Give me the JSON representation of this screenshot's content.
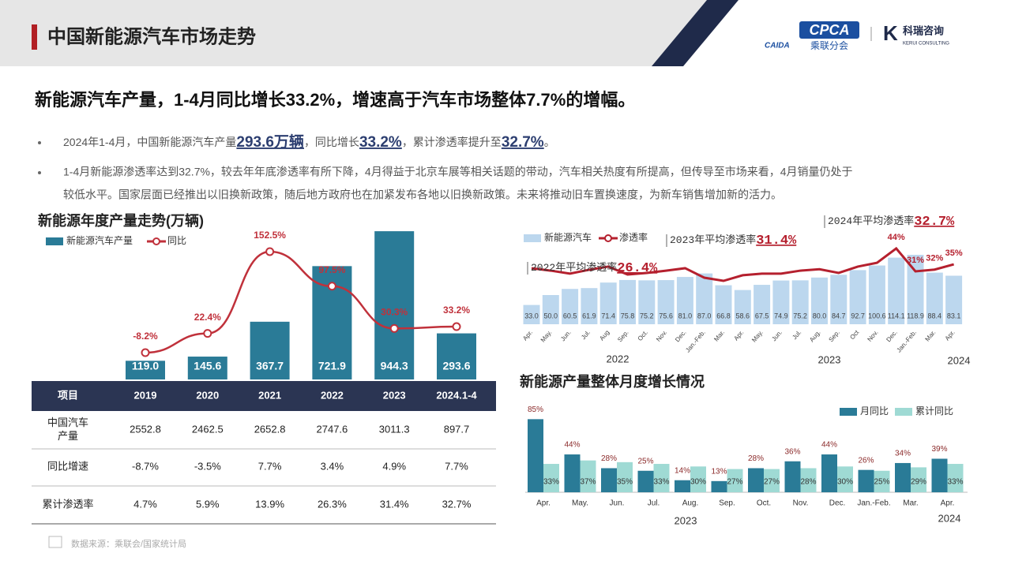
{
  "header": {
    "title": "中国新能源汽车市场走势",
    "logos": [
      "CAIDA",
      "CPCA",
      "乘联分会",
      "科瑞咨询",
      "KERUI CONSULTING"
    ]
  },
  "headline": "新能源汽车产量，1-4月同比增长33.2%，增速高于汽车市场整体7.7%的增幅。",
  "bullets": [
    [
      "2024年1-4月，中国新能源汽车产量",
      "293.6万辆",
      "，同比增长",
      "33.2%",
      "，累计渗透率提升至",
      "32.7%",
      "。"
    ],
    [
      "1-4月新能源渗透率达到32.7%，较去年年底渗透率有所下降，4月得益于北京车展等相关话题的带动，汽车相关热度有所提高，但传导至市场来看，4月销量仍处于",
      "较低水平。国家层面已经推出以旧换新政策，随后地方政府也在加紧发布各地以旧换新政策。未来将推动旧车置换速度，为新车销售增加新的活力。"
    ]
  ],
  "chart_data": [
    {
      "type": "combo",
      "title": "新能源年度产量走势(万辆)",
      "categories": [
        "2019",
        "2020",
        "2021",
        "2022",
        "2023",
        "2024.1-4"
      ],
      "series": [
        {
          "name": "新能源汽车产量",
          "type": "bar",
          "color": "#2a7b97",
          "values": [
            119.0,
            145.6,
            367.7,
            721.9,
            944.3,
            293.6
          ],
          "value_labels": [
            "119.0",
            "145.6",
            "367.7",
            "721.9",
            "944.3",
            "293.6"
          ]
        },
        {
          "name": "同比",
          "type": "line",
          "color": "#c0313b",
          "values": [
            -8.2,
            22.4,
            152.5,
            97.5,
            30.3,
            33.2
          ],
          "value_labels": [
            "-8.2%",
            "22.4%",
            "152.5%",
            "97.5%",
            "30.3%",
            "33.2%"
          ]
        }
      ]
    },
    {
      "type": "combo",
      "categories": [
        "Apr.",
        "May.",
        "Jun.",
        "Jul.",
        "Aug",
        "Sep.",
        "Oct.",
        "Nov.",
        "Dec.",
        "Jan.-Feb.",
        "Mar.",
        "Apr.",
        "May.",
        "Jun.",
        "Jul.",
        "Aug.",
        "Sep.",
        "Oct",
        "Nov.",
        "Dec.",
        "Jan.-Feb.",
        "Mar.",
        "Apr."
      ],
      "year_labels": [
        "2022",
        "2023",
        "2024"
      ],
      "series": [
        {
          "name": "新能源汽车",
          "type": "bar",
          "color": "#bcd7ee",
          "values": [
            33.0,
            50.0,
            60.5,
            61.9,
            71.4,
            75.8,
            75.2,
            75.6,
            81.0,
            87.0,
            66.8,
            58.6,
            67.5,
            74.9,
            75.2,
            80.0,
            84.7,
            92.7,
            100.6,
            114.1,
            118.9,
            88.4,
            83.1
          ],
          "value_labels": [
            "33.0",
            "50.0",
            "60.5",
            "61.9",
            "71.4",
            "75.8",
            "75.2",
            "75.6",
            "81.0",
            "87.0",
            "66.8",
            "58.6",
            "67.5",
            "74.9",
            "75.2",
            "80.0",
            "84.7",
            "92.7",
            "100.6",
            "114.1",
            "118.9",
            "88.4",
            "83.1"
          ]
        },
        {
          "name": "渗透率",
          "type": "line",
          "color": "#b5202e",
          "values": [
            32.8,
            31.4,
            29.7,
            31.9,
            33.7,
            29.2,
            30.1,
            31.4,
            32.8,
            27.4,
            25.6,
            28.8,
            29.7,
            29.7,
            31.4,
            32.2,
            30.1,
            33.7,
            35.9,
            44,
            31,
            32,
            35
          ],
          "value_labels": [
            null,
            null,
            null,
            null,
            null,
            null,
            null,
            null,
            null,
            null,
            null,
            null,
            null,
            null,
            null,
            null,
            null,
            null,
            null,
            "44%",
            "31%",
            "32%",
            "35%"
          ]
        }
      ],
      "annotations": [
        [
          "2022年平均渗透率",
          "26.4%"
        ],
        [
          "2023年平均渗透率",
          "31.4%"
        ],
        [
          "2024年平均渗透率",
          "32.7%"
        ]
      ]
    },
    {
      "type": "bar",
      "title": "新能源产量整体月度增长情况",
      "categories": [
        "Apr.",
        "May.",
        "Jun.",
        "Jul.",
        "Aug.",
        "Sep.",
        "Oct.",
        "Nov.",
        "Dec.",
        "Jan.-Feb.",
        "Mar.",
        "Apr."
      ],
      "year_labels": [
        "2023",
        "2024"
      ],
      "series": [
        {
          "name": "月同比",
          "color": "#2a7b97",
          "values": [
            85,
            44,
            28,
            25,
            14,
            13,
            28,
            36,
            44,
            26,
            34,
            39
          ],
          "value_labels": [
            "85%",
            "44%",
            "28%",
            "25%",
            "14%",
            "13%",
            "28%",
            "36%",
            "44%",
            "26%",
            "34%",
            "39%"
          ]
        },
        {
          "name": "累计同比",
          "color": "#9fdad4",
          "values": [
            33,
            37,
            35,
            33,
            30,
            27,
            27,
            28,
            30,
            25,
            29,
            33
          ],
          "value_labels": [
            "33%",
            "37%",
            "35%",
            "33%",
            "30%",
            "27%",
            "27%",
            "28%",
            "30%",
            "25%",
            "29%",
            "33%"
          ]
        }
      ]
    }
  ],
  "table": {
    "header": "项目",
    "rows": [
      {
        "label": [
          "中国汽车",
          "产量"
        ],
        "cells": [
          "2552.8",
          "2462.5",
          "2652.8",
          "2747.6",
          "3011.3",
          "897.7"
        ]
      },
      {
        "label": [
          "同比增速"
        ],
        "cells": [
          "-8.7%",
          "-3.5%",
          "7.7%",
          "3.4%",
          "4.9%",
          "7.7%"
        ]
      },
      {
        "label": [
          "累计渗透率"
        ],
        "cells": [
          "4.7%",
          "5.9%",
          "13.9%",
          "26.3%",
          "31.4%",
          "32.7%"
        ]
      }
    ]
  },
  "source": "数据来源：乘联会/国家统计局"
}
